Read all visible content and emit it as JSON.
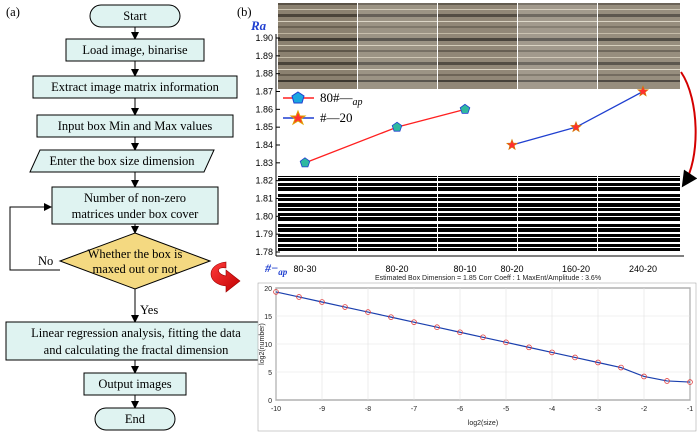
{
  "panel_a": {
    "label": "(a)",
    "steps": [
      "Start",
      "Load image, binarise",
      "Extract image matrix information",
      "Input box Min and Max values",
      "Enter the box size dimension",
      "Number of non-zero",
      "matrices under box cover",
      "Whether the box is",
      "maxed out or not",
      "Linear regression analysis, fitting the data",
      "and calculating the fractal dimension",
      "Output images",
      "End"
    ],
    "branch_no": "No",
    "branch_yes": "Yes"
  },
  "panel_b": {
    "label": "(b)",
    "ra_label": "Ra",
    "x_axis_label": "#−",
    "x_axis_label_sub": "ap",
    "legend": [
      {
        "text": "80#—",
        "sub": "ap",
        "color": "#ff2020",
        "marker_color": "#1f4fd0"
      },
      {
        "text": "#—20",
        "sub": "",
        "color": "#1f3fd0",
        "marker_color": "#ff3030"
      }
    ],
    "chart_data": {
      "type": "line",
      "ylabel": "Ra",
      "ylim": [
        1.78,
        1.9
      ],
      "yticks": [
        "1.90",
        "1.89",
        "1.88",
        "1.87",
        "1.86",
        "1.85",
        "1.84",
        "1.83",
        "1.82",
        "1.81",
        "1.80",
        "1.79",
        "1.78"
      ],
      "categories": [
        "80-30",
        "80-20",
        "80-10",
        "80-20",
        "160-20",
        "240-20"
      ],
      "series": [
        {
          "name": "80#—ap",
          "values": [
            1.83,
            1.85,
            1.86,
            null,
            null,
            null
          ],
          "color": "#ff2020",
          "marker": "pentagon"
        },
        {
          "name": "#—20",
          "values": [
            null,
            null,
            null,
            1.84,
            1.85,
            1.87
          ],
          "color": "#1f3fd0",
          "marker": "star"
        }
      ]
    },
    "fractal_plot": {
      "info": "Estimated Box Dimension =  1.85    Corr Coeff : 1    MaxEnt/Amplitude : 3.6%",
      "chart_data": {
        "type": "line",
        "xlabel": "log2(size)",
        "ylabel": "log2(number)",
        "xlim": [
          -10,
          -1
        ],
        "ylim": [
          0,
          20
        ],
        "xticks": [
          "-10",
          "-9",
          "-8",
          "-7",
          "-6",
          "-5",
          "-4",
          "-3",
          "-2",
          "-1"
        ],
        "yticks": [
          "20",
          "15",
          "10",
          "5",
          "0"
        ],
        "x": [
          -10,
          -9.5,
          -9,
          -8.5,
          -8,
          -7.5,
          -7,
          -6.5,
          -6,
          -5.5,
          -5,
          -4.5,
          -4,
          -3.5,
          -3,
          -2.5,
          -2,
          -1.5,
          -1
        ],
        "y": [
          19.3,
          18.4,
          17.5,
          16.6,
          15.7,
          14.8,
          13.9,
          13.0,
          12.1,
          11.2,
          10.3,
          9.4,
          8.5,
          7.6,
          6.7,
          5.8,
          4.2,
          3.4,
          3.2
        ]
      }
    }
  }
}
